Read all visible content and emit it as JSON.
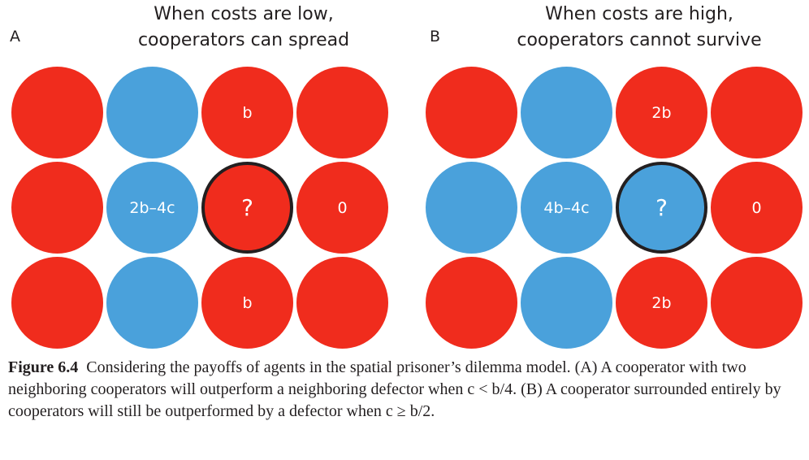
{
  "colors": {
    "defector": "#f02c1d",
    "cooperator": "#4aa1db",
    "outline": "#231f20"
  },
  "panels": [
    {
      "letter": "A",
      "title_line1": "When costs are low,",
      "title_line2": "cooperators can spread",
      "cells": [
        [
          {
            "type": "defector",
            "label": ""
          },
          {
            "type": "cooperator",
            "label": ""
          },
          {
            "type": "defector",
            "label": "b"
          },
          {
            "type": "defector",
            "label": ""
          }
        ],
        [
          {
            "type": "defector",
            "label": ""
          },
          {
            "type": "cooperator",
            "label": "2b–4c"
          },
          {
            "type": "defector",
            "label": "?",
            "focal": true
          },
          {
            "type": "defector",
            "label": "0"
          }
        ],
        [
          {
            "type": "defector",
            "label": ""
          },
          {
            "type": "cooperator",
            "label": ""
          },
          {
            "type": "defector",
            "label": "b"
          },
          {
            "type": "defector",
            "label": ""
          }
        ]
      ]
    },
    {
      "letter": "B",
      "title_line1": "When costs are high,",
      "title_line2": "cooperators cannot survive",
      "cells": [
        [
          {
            "type": "defector",
            "label": ""
          },
          {
            "type": "cooperator",
            "label": ""
          },
          {
            "type": "defector",
            "label": "2b"
          },
          {
            "type": "defector",
            "label": ""
          }
        ],
        [
          {
            "type": "cooperator",
            "label": ""
          },
          {
            "type": "cooperator",
            "label": "4b–4c"
          },
          {
            "type": "cooperator",
            "label": "?",
            "focal": true
          },
          {
            "type": "defector",
            "label": "0"
          }
        ],
        [
          {
            "type": "defector",
            "label": ""
          },
          {
            "type": "cooperator",
            "label": ""
          },
          {
            "type": "defector",
            "label": "2b"
          },
          {
            "type": "defector",
            "label": ""
          }
        ]
      ]
    }
  ],
  "caption": {
    "label": "Figure 6.4",
    "text": "Considering the payoffs of agents in the spatial prisoner’s dilemma model. (A) A cooperator with two neighboring cooperators will outperform a neighboring defector when c < b/4. (B) A cooperator surrounded entirely by cooperators will still be outperformed by a defector when c ≥ b/2."
  }
}
